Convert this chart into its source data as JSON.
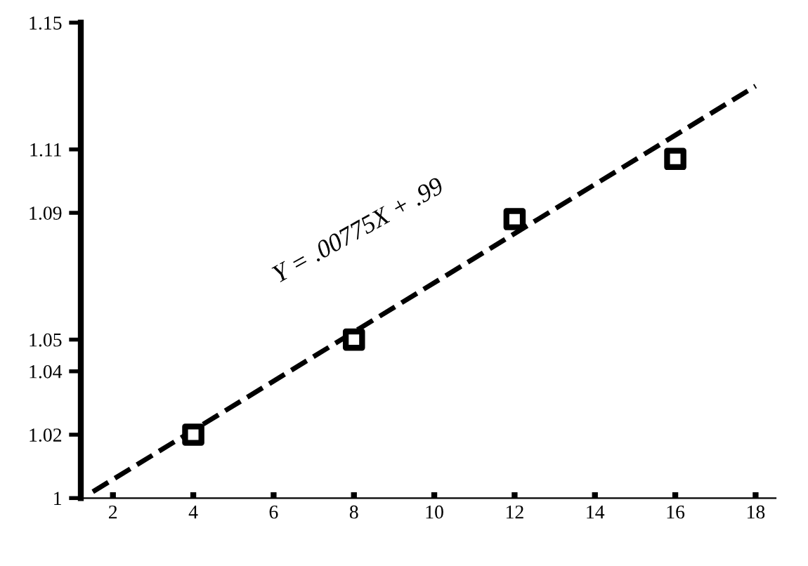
{
  "chart_data": {
    "type": "scatter",
    "xlim": [
      1.2,
      18.5
    ],
    "ylim": [
      1,
      1.15
    ],
    "xticks": [
      2,
      4,
      6,
      8,
      10,
      12,
      14,
      16,
      18
    ],
    "yticks": [
      1,
      1.02,
      1.04,
      1.05,
      1.09,
      1.11,
      1.15
    ],
    "grid": false,
    "legend": false,
    "marker": "square",
    "series": [
      {
        "color": "#000000",
        "x": [
          4,
          8,
          12,
          16
        ],
        "values": [
          1.02,
          1.05,
          1.088,
          1.107
        ]
      },
      {
        "type": "line",
        "color": "#000000",
        "line_style": "dashed",
        "marker": "none",
        "x": [
          1.5,
          18
        ],
        "values": [
          1.002,
          1.13
        ]
      }
    ],
    "annotations": [
      "Y = .00775X + .99"
    ]
  }
}
